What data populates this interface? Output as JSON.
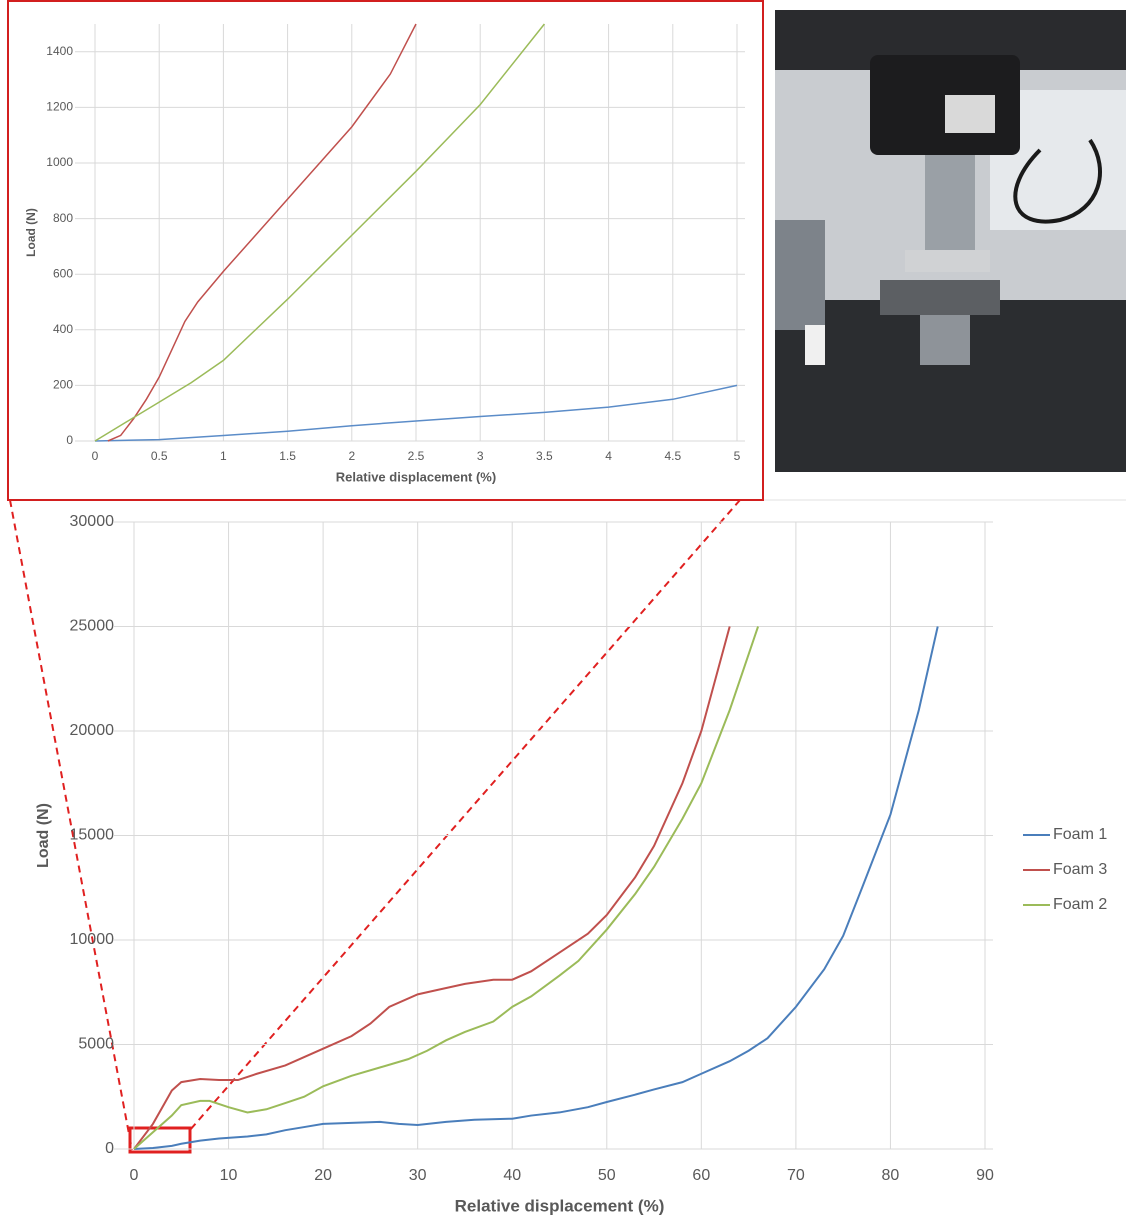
{
  "chart_data": [
    {
      "type": "line",
      "ylabel": "Load (N)",
      "xlabel": "Relative displacement (%)",
      "xlim": [
        0,
        5
      ],
      "xticks": [
        0,
        0.5,
        1,
        1.5,
        2,
        2.5,
        3,
        3.5,
        4,
        4.5,
        5
      ],
      "ylim": [
        0,
        1500
      ],
      "yticks": [
        0,
        200,
        400,
        600,
        800,
        1000,
        1200,
        1400
      ],
      "grid": true,
      "series": [
        {
          "color": "#5b8cc8",
          "x": [
            0,
            0.5,
            1,
            1.5,
            2,
            2.5,
            3,
            3.5,
            4,
            4.5,
            5
          ],
          "values": [
            0,
            5,
            20,
            35,
            55,
            72,
            88,
            103,
            122,
            150,
            200
          ]
        },
        {
          "color": "#c0504d",
          "x": [
            0.1,
            0.2,
            0.3,
            0.4,
            0.5,
            0.6,
            0.7,
            0.8,
            1,
            1.5,
            2,
            2.3,
            2.5
          ],
          "values": [
            0,
            20,
            80,
            150,
            230,
            330,
            430,
            500,
            610,
            870,
            1130,
            1320,
            1500
          ]
        },
        {
          "color": "#9bbb59",
          "x": [
            0,
            0.25,
            0.5,
            0.75,
            1,
            1.5,
            2,
            2.5,
            3,
            3.5
          ],
          "values": [
            0,
            70,
            140,
            210,
            290,
            510,
            740,
            970,
            1210,
            1500
          ]
        }
      ]
    },
    {
      "type": "line",
      "ylabel": "Load (N)",
      "xlabel": "Relative displacement (%)",
      "xlim": [
        0,
        90
      ],
      "xticks": [
        0,
        10,
        20,
        30,
        40,
        50,
        60,
        70,
        80,
        90
      ],
      "ylim": [
        0,
        30000
      ],
      "yticks": [
        0,
        5000,
        10000,
        15000,
        20000,
        25000,
        30000
      ],
      "grid": true,
      "legend": "right",
      "series": [
        {
          "name": "Foam 1",
          "color": "#4a7ebb",
          "x": [
            0,
            2,
            4,
            5,
            7,
            9,
            12,
            14,
            16,
            18,
            20,
            23,
            26,
            28,
            30,
            33,
            36,
            40,
            42,
            45,
            48,
            50,
            53,
            55,
            58,
            60,
            63,
            65,
            67,
            70,
            73,
            75,
            77,
            80,
            83,
            85
          ],
          "values": [
            0,
            50,
            150,
            250,
            400,
            500,
            600,
            700,
            900,
            1050,
            1200,
            1250,
            1300,
            1200,
            1150,
            1300,
            1400,
            1450,
            1600,
            1750,
            2000,
            2250,
            2600,
            2850,
            3200,
            3600,
            4200,
            4700,
            5300,
            6800,
            8600,
            10200,
            12500,
            16000,
            21000,
            25000
          ]
        },
        {
          "name": "Foam 3",
          "color": "#c0504d",
          "x": [
            0,
            2,
            3,
            4,
            5,
            7,
            9,
            11,
            13,
            16,
            18,
            20,
            23,
            25,
            27,
            30,
            32,
            35,
            38,
            40,
            42,
            45,
            48,
            50,
            53,
            55,
            58,
            60,
            63
          ],
          "values": [
            0,
            1200,
            2000,
            2800,
            3200,
            3350,
            3300,
            3300,
            3600,
            4000,
            4400,
            4800,
            5400,
            6000,
            6800,
            7400,
            7600,
            7900,
            8100,
            8100,
            8500,
            9400,
            10300,
            11200,
            13000,
            14500,
            17500,
            20000,
            25000
          ]
        },
        {
          "name": "Foam 2",
          "color": "#9bbb59",
          "x": [
            0,
            2,
            4,
            5,
            7,
            8,
            10,
            12,
            14,
            16,
            18,
            20,
            23,
            26,
            29,
            31,
            33,
            35,
            38,
            40,
            42,
            45,
            47,
            50,
            53,
            55,
            58,
            60,
            63,
            66
          ],
          "values": [
            0,
            800,
            1600,
            2100,
            2300,
            2300,
            2000,
            1750,
            1900,
            2200,
            2500,
            3000,
            3500,
            3900,
            4300,
            4700,
            5200,
            5600,
            6100,
            6800,
            7300,
            8300,
            9000,
            10500,
            12200,
            13500,
            15800,
            17500,
            21000,
            25000
          ]
        }
      ]
    }
  ]
}
